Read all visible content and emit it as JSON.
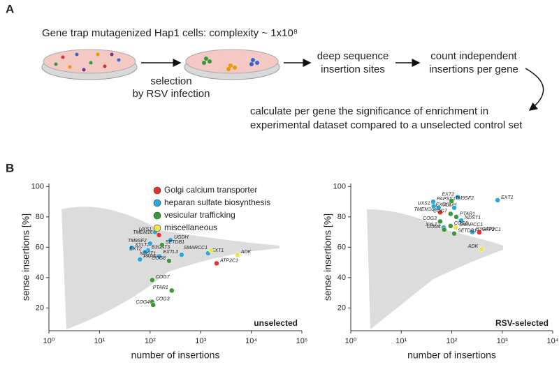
{
  "panel_labels": [
    "A",
    "B"
  ],
  "panel_a": {
    "library": "Gene trap mutagenized Hap1 cells: complexity ~ 1x10⁸",
    "selection": [
      "selection",
      "by RSV infection"
    ],
    "sequencing": [
      "deep sequence",
      "insertion sites"
    ],
    "counting": [
      "count independent",
      "insertions per gene"
    ],
    "analysis": [
      "calculate per gene the significance of enrichment in",
      "experimental dataset compared to a unselected control set"
    ]
  },
  "chart_data": [
    {
      "type": "scatter",
      "annotation": "unselected",
      "xlabel": "number of insertions",
      "ylabel": "sense insertions [%]",
      "xscale": "log",
      "xlim": [
        1,
        100000
      ],
      "ylim": [
        5,
        102
      ],
      "xticks": [
        {
          "value": 1,
          "label": "10⁰"
        },
        {
          "value": 10,
          "label": "10¹"
        },
        {
          "value": 100,
          "label": "10²"
        },
        {
          "value": 1000,
          "label": "10³"
        },
        {
          "value": 10000,
          "label": "10⁴"
        },
        {
          "value": 100000,
          "label": "10⁵"
        }
      ],
      "yticks": [
        20,
        40,
        60,
        80,
        100
      ],
      "legend": "top",
      "series": [
        {
          "name": "Golgi calcium transporter",
          "color": "#e8302c",
          "labels": [
            "ATP2C1",
            "TMEM165"
          ],
          "x": [
            2065,
            150
          ],
          "values": [
            49.4,
            68
          ]
        },
        {
          "name": "heparan sulfate biosynthesis",
          "color": "#2aa8e0",
          "labels": [
            "XYLT2",
            "UXS1",
            "UGDH",
            "TM9SF2",
            "B3GAT3",
            "EXT2",
            "PAPSS1",
            "NDST1",
            "EXT1",
            "EXTL3"
          ],
          "x": [
            43,
            126,
            253,
            100,
            91,
            80,
            63,
            152,
            1400,
            420
          ],
          "values": [
            59.6,
            70,
            64.7,
            62.4,
            58,
            57,
            52,
            54,
            56,
            55
          ]
        },
        {
          "name": "vesicular trafficking",
          "color": "#3a9a3a",
          "labels": [
            "SETDB1",
            "COG8",
            "COG7",
            "PTAR1",
            "COG3",
            "COG4"
          ],
          "x": [
            172,
            237,
            110,
            268,
            110,
            115
          ],
          "values": [
            61.5,
            51,
            38.4,
            31.5,
            24,
            22
          ]
        },
        {
          "name": "miscellaneous",
          "color": "#f2e14a",
          "labels": [
            "ADK",
            "SMARCC1"
          ],
          "x": [
            5350,
            1600
          ],
          "values": [
            55,
            57.8
          ]
        }
      ]
    },
    {
      "type": "scatter",
      "annotation": "RSV-selected",
      "xlabel": "number of insertions",
      "ylabel": "sense insertions [%]",
      "xscale": "log",
      "xlim": [
        1,
        10000
      ],
      "ylim": [
        5,
        102
      ],
      "xticks": [
        {
          "value": 1,
          "label": "10⁰"
        },
        {
          "value": 10,
          "label": "10¹"
        },
        {
          "value": 100,
          "label": "10²"
        },
        {
          "value": 1000,
          "label": "10³"
        },
        {
          "value": 10000,
          "label": "10⁴"
        }
      ],
      "yticks": [
        20,
        40,
        60,
        80,
        100
      ],
      "series": [
        {
          "color": "#e8302c",
          "labels": [
            "ATP2C1",
            "TMEM165"
          ],
          "x": [
            352,
            59
          ],
          "values": [
            69.8,
            83
          ]
        },
        {
          "color": "#2aa8e0",
          "labels": [
            "EXT1",
            "EXT2",
            "PAPSS1",
            "UXS1",
            "UGDH",
            "EXTL3",
            "NDST1",
            "XYLT2",
            "B3GAT3"
          ],
          "x": [
            810,
            131,
            43,
            44,
            55,
            112,
            154,
            69,
            256
          ],
          "values": [
            91,
            93,
            90,
            87,
            86,
            86,
            77.6,
            73,
            70
          ]
        },
        {
          "color": "#3a9a3a",
          "labels": [
            "TM9SF2",
            "COG7",
            "PTAR1",
            "COG3",
            "COG8",
            "COG4",
            "SETDB1"
          ],
          "x": [
            99,
            95,
            123,
            59,
            95,
            71,
            112
          ],
          "values": [
            90.5,
            82,
            80,
            77,
            74,
            71.6,
            69
          ]
        },
        {
          "color": "#f2e14a",
          "labels": [
            "SMARCC1",
            "ADK"
          ],
          "x": [
            119,
            390
          ],
          "values": [
            73,
            58.7
          ]
        }
      ]
    }
  ]
}
